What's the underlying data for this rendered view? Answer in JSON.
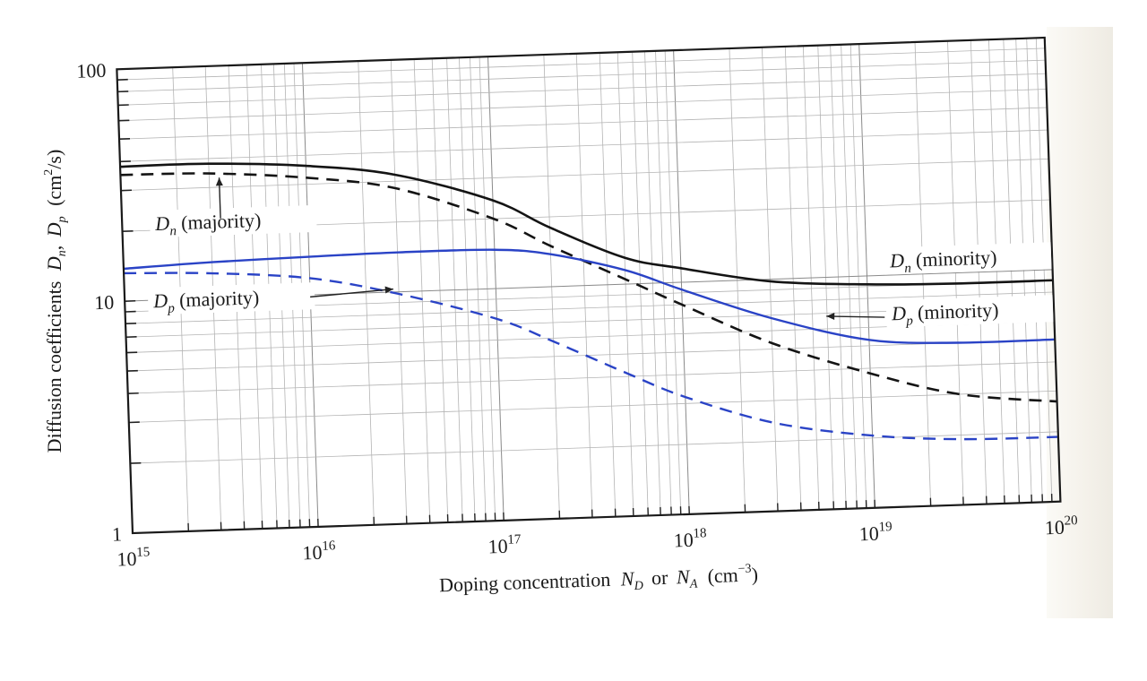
{
  "chart_data": {
    "type": "line",
    "title": "",
    "xlabel": {
      "text": "Doping concentration",
      "var1": "N",
      "sub1": "D",
      "mid": "or",
      "var2": "N",
      "sub2": "A",
      "unit_pre": "(cm",
      "unit_sup": "−3",
      "unit_post": ")"
    },
    "ylabel": {
      "text": "Diffusion coefficients",
      "var1": "D",
      "sub1": "n",
      "sep": ",",
      "var2": "D",
      "sub2": "p",
      "unit_pre": "(cm",
      "unit_sup": "2",
      "unit_post": "/s)"
    },
    "x_scale": "log",
    "y_scale": "log",
    "xlim": [
      1000000000000000.0,
      1e+20
    ],
    "ylim": [
      1,
      100
    ],
    "grid": true,
    "x_ticks": [
      {
        "value": 1000000000000000.0,
        "base": "10",
        "exp": "15"
      },
      {
        "value": 1e+16,
        "base": "10",
        "exp": "16"
      },
      {
        "value": 1e+17,
        "base": "10",
        "exp": "17"
      },
      {
        "value": 1e+18,
        "base": "10",
        "exp": "18"
      },
      {
        "value": 1e+19,
        "base": "10",
        "exp": "19"
      },
      {
        "value": 1e+20,
        "base": "10",
        "exp": "20"
      }
    ],
    "y_ticks": [
      {
        "value": 1,
        "label": "1"
      },
      {
        "value": 10,
        "label": "10"
      },
      {
        "value": 100,
        "label": "100"
      }
    ],
    "x": [
      1000000000000000.0,
      3000000000000000.0,
      1e+16,
      3e+16,
      1e+17,
      2e+17,
      5e+17,
      1e+18,
      3e+18,
      1e+19,
      3e+19,
      1e+20
    ],
    "series": [
      {
        "name": "Dn (solid, majority at low doping / minority at high doping)",
        "color": "#141414",
        "dash": "solid",
        "values": [
          38,
          38,
          36,
          32,
          24,
          18,
          13,
          11.5,
          9.8,
          9.2,
          9.0,
          9.0
        ]
      },
      {
        "name": "Dn majority (dashed)",
        "color": "#141414",
        "dash": "dashed",
        "values": [
          35,
          34.5,
          32,
          28,
          20,
          15,
          10.5,
          8,
          5.3,
          3.8,
          3.0,
          2.7
        ]
      },
      {
        "name": "Dp (solid, minority)",
        "color": "#2a43c6",
        "dash": "solid",
        "values": [
          13.8,
          14.3,
          14.6,
          14.8,
          14.7,
          13.8,
          11.5,
          9.3,
          6.8,
          5.3,
          5.0,
          5.0
        ]
      },
      {
        "name": "Dp majority (dashed)",
        "color": "#2a43c6",
        "dash": "dashed",
        "values": [
          13.2,
          12.8,
          11.8,
          9.8,
          7.4,
          5.8,
          4.1,
          3.2,
          2.4,
          2.05,
          1.92,
          1.9
        ]
      }
    ],
    "annotations": [
      {
        "name": "dn-majority",
        "var": "D",
        "sub": "n",
        "text": "(majority)",
        "points_to": "Dn majority dashed curve at ~3e15",
        "arrow": "up"
      },
      {
        "name": "dp-majority",
        "var": "D",
        "sub": "p",
        "text": "(majority)",
        "points_to": "Dp majority dashed curve at ~3e16",
        "arrow": "right"
      },
      {
        "name": "dn-minority",
        "var": "D",
        "sub": "n",
        "text": "(minority)",
        "points_to": "Dn solid curve near 1e19",
        "arrow": "none"
      },
      {
        "name": "dp-minority",
        "var": "D",
        "sub": "p",
        "text": "(minority)",
        "points_to": "Dp solid curve at ~3e18",
        "arrow": "left"
      }
    ],
    "legend": "none (inline annotations)"
  }
}
